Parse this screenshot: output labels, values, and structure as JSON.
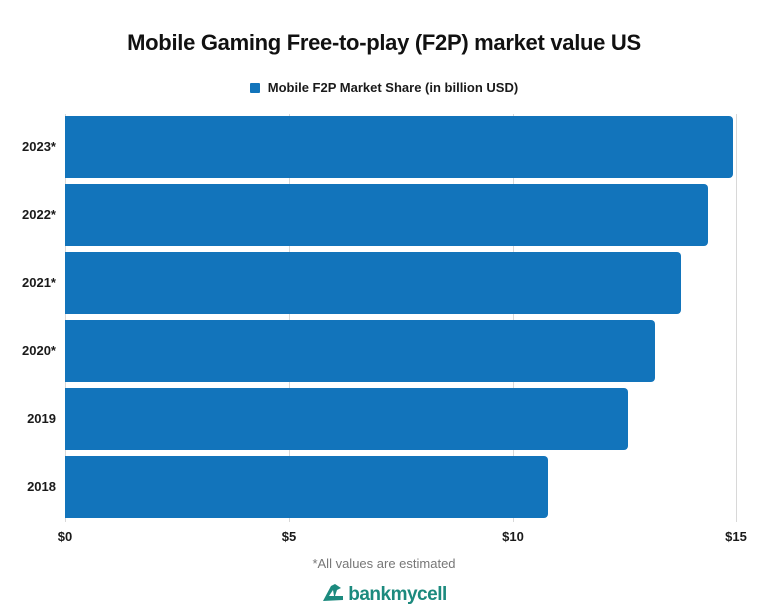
{
  "title": "Mobile Gaming Free-to-play (F2P) market value US",
  "legend": {
    "label": "Mobile F2P Market Share (in billion USD)",
    "color": "#1274bb"
  },
  "footnote": "*All values are estimated",
  "logo": {
    "text": "bankmycell",
    "icon": "bankmycell-logo-icon",
    "color": "#1c8a7e"
  },
  "x_ticks": [
    "$0",
    "$5",
    "$10",
    "$15"
  ],
  "chart_data": {
    "type": "bar",
    "orientation": "horizontal",
    "title": "Mobile Gaming Free-to-play (F2P) market value US",
    "categories": [
      "2023*",
      "2022*",
      "2021*",
      "2020*",
      "2019",
      "2018"
    ],
    "series": [
      {
        "name": "Mobile F2P Market Share (in billion USD)",
        "color": "#1274bb",
        "values": [
          14.93,
          14.38,
          13.77,
          13.19,
          12.59,
          10.8
        ]
      }
    ],
    "xlabel": "",
    "ylabel": "",
    "xlim": [
      0,
      15
    ],
    "x_ticks": [
      "$0",
      "$5",
      "$10",
      "$15"
    ],
    "grid": "vertical",
    "legend_position": "top",
    "annotations": [
      "*All values are estimated"
    ]
  }
}
